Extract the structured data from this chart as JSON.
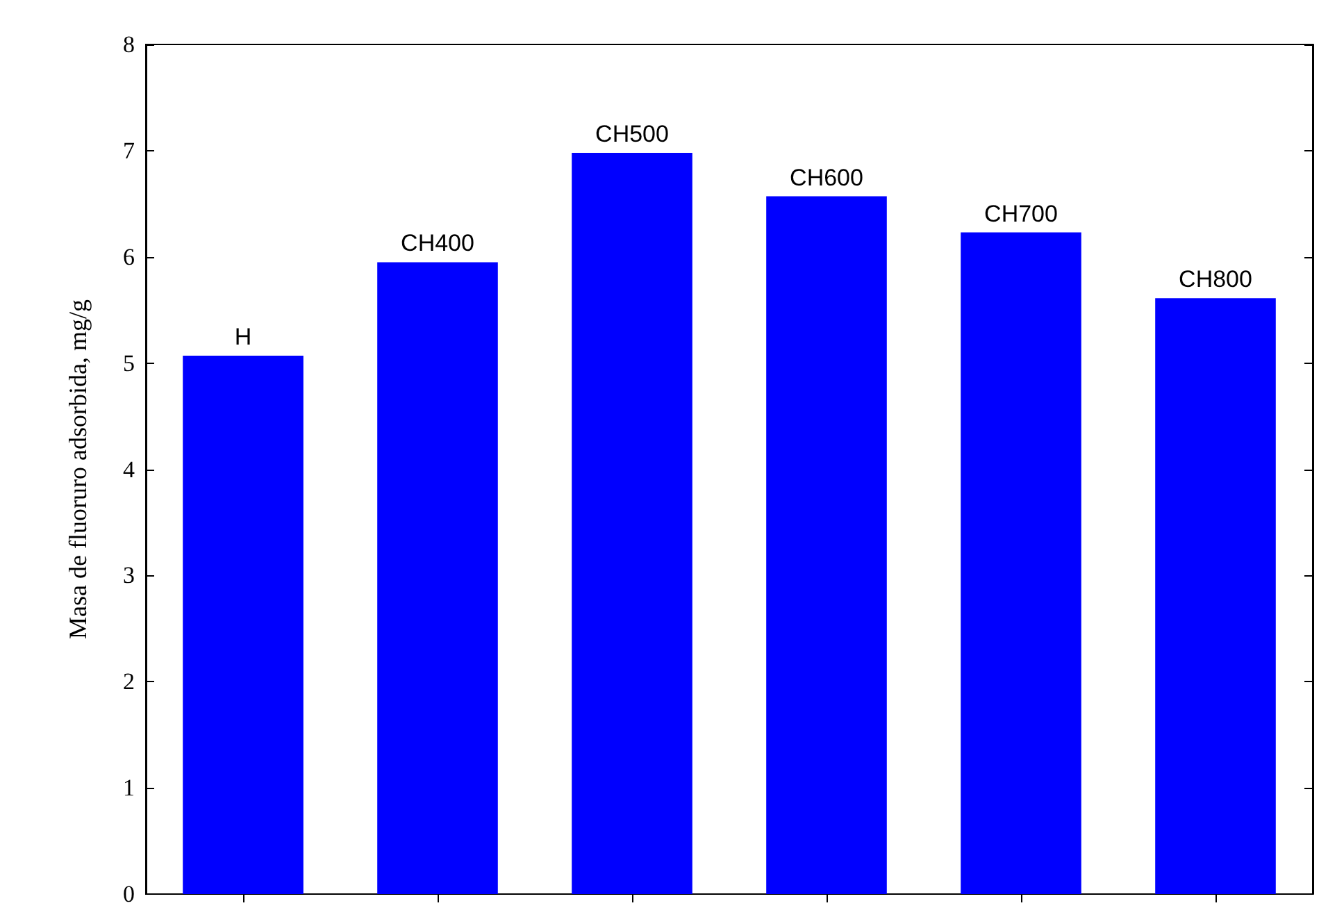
{
  "chart_data": {
    "type": "bar",
    "ylabel": "Masa de fluoruro adsorbida, mg/g",
    "categories": [
      "H",
      "CH400",
      "CH500",
      "CH600",
      "CH700",
      "CH800"
    ],
    "values": [
      5.07,
      5.95,
      6.98,
      6.57,
      6.23,
      5.61
    ],
    "color": "#0000ff",
    "ylim": [
      0,
      8
    ],
    "yticks": [
      0,
      1,
      2,
      3,
      4,
      5,
      6,
      7,
      8
    ],
    "grid": false,
    "tick_labels": "y"
  }
}
